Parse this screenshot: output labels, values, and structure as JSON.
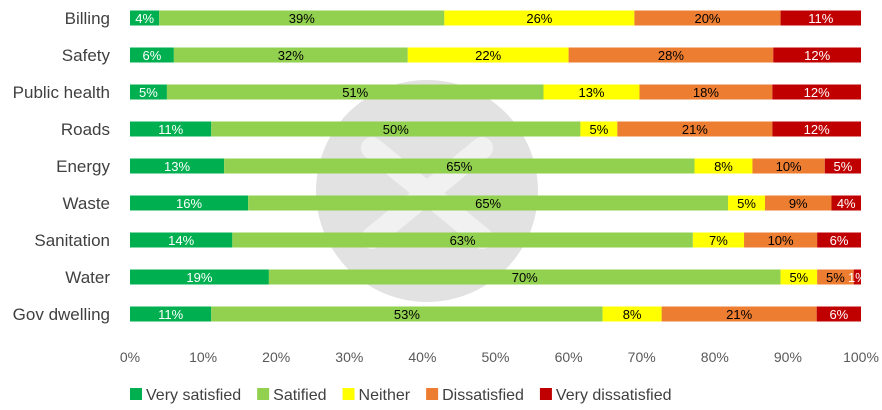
{
  "chart_data": {
    "type": "bar",
    "orientation": "horizontal",
    "stacked": true,
    "categories": [
      "Billing",
      "Safety",
      "Public health",
      "Roads",
      "Energy",
      "Waste",
      "Sanitation",
      "Water",
      "Gov dwelling"
    ],
    "series": [
      {
        "name": "Very satisfied",
        "color": "#00b050",
        "values": [
          4,
          6,
          5,
          11,
          13,
          16,
          14,
          19,
          11
        ]
      },
      {
        "name": "Satified",
        "color": "#92d050",
        "values": [
          39,
          32,
          51,
          50,
          65,
          65,
          63,
          70,
          53
        ]
      },
      {
        "name": "Neither",
        "color": "#ffff00",
        "values": [
          26,
          22,
          13,
          5,
          8,
          5,
          7,
          5,
          8
        ]
      },
      {
        "name": "Dissatisfied",
        "color": "#ed7d31",
        "values": [
          20,
          28,
          18,
          21,
          10,
          9,
          10,
          5,
          21
        ]
      },
      {
        "name": "Very dissatisfied",
        "color": "#c00000",
        "values": [
          11,
          12,
          12,
          12,
          5,
          4,
          6,
          1,
          6
        ]
      }
    ],
    "x_ticks": [
      "0%",
      "10%",
      "20%",
      "30%",
      "40%",
      "50%",
      "60%",
      "70%",
      "80%",
      "90%",
      "100%"
    ],
    "xlim": [
      0,
      100
    ],
    "grid": false,
    "legend_position": "bottom",
    "data_label_suffix": "%",
    "label_colors": {
      "on_dark": "#ffffff",
      "on_light": "#000000"
    }
  }
}
